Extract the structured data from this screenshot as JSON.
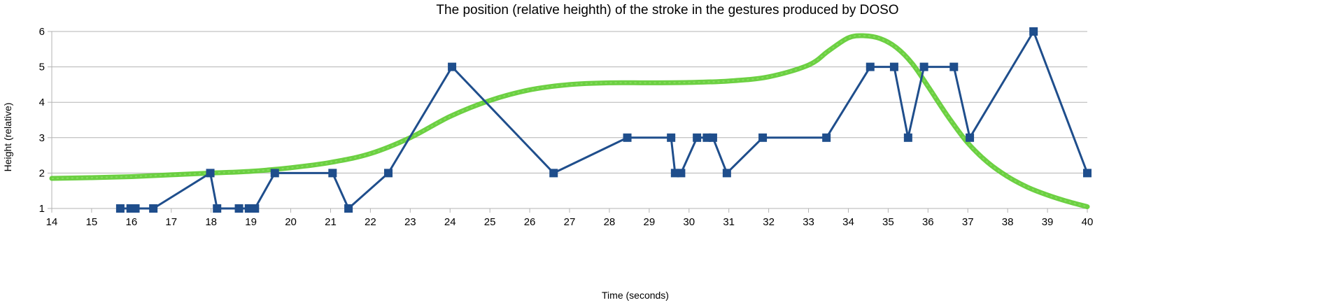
{
  "chart_data": {
    "type": "line",
    "title": "The position (relative heighth) of the stroke in the gestures produced by DOSO",
    "xlabel": "Time (seconds)",
    "ylabel": "Height (relative)",
    "xlim": [
      14,
      40
    ],
    "ylim": [
      1,
      6
    ],
    "x_ticks": [
      "14",
      "15",
      "16",
      "17",
      "18",
      "19",
      "20",
      "21",
      "22",
      "23",
      "24",
      "25",
      "26",
      "27",
      "28",
      "29",
      "30",
      "31",
      "32",
      "33",
      "34",
      "35",
      "36",
      "37",
      "38",
      "39",
      "40"
    ],
    "y_ticks": [
      "1",
      "2",
      "3",
      "4",
      "5",
      "6"
    ],
    "grid": "horizontal",
    "legend": "none",
    "series": [
      {
        "color": "#1F4E8C",
        "marker": "square",
        "points": [
          [
            15.72,
            1
          ],
          [
            15.98,
            1
          ],
          [
            16.1,
            1
          ],
          [
            16.55,
            1
          ],
          [
            17.98,
            2
          ],
          [
            18.15,
            1
          ],
          [
            18.7,
            1
          ],
          [
            18.95,
            1
          ],
          [
            19.1,
            1
          ],
          [
            19.6,
            2
          ],
          [
            21.05,
            2
          ],
          [
            21.45,
            1
          ],
          [
            22.45,
            2
          ],
          [
            24.05,
            5
          ],
          [
            26.6,
            2
          ],
          [
            28.45,
            3
          ],
          [
            29.55,
            3
          ],
          [
            29.65,
            2
          ],
          [
            29.8,
            2
          ],
          [
            30.2,
            3
          ],
          [
            30.45,
            3
          ],
          [
            30.6,
            3
          ],
          [
            30.95,
            2
          ],
          [
            31.85,
            3
          ],
          [
            33.45,
            3
          ],
          [
            34.55,
            5
          ],
          [
            35.15,
            5
          ],
          [
            35.5,
            3
          ],
          [
            35.9,
            5
          ],
          [
            36.65,
            5
          ],
          [
            37.05,
            3
          ],
          [
            38.65,
            6
          ],
          [
            40.0,
            2
          ]
        ]
      },
      {
        "color": "#5CCB2E",
        "marker": "none",
        "style": "smooth-trend",
        "points": [
          [
            14,
            1.85
          ],
          [
            15,
            1.87
          ],
          [
            16,
            1.9
          ],
          [
            17,
            1.95
          ],
          [
            18,
            2.0
          ],
          [
            19,
            2.05
          ],
          [
            20,
            2.15
          ],
          [
            21,
            2.3
          ],
          [
            22,
            2.55
          ],
          [
            23,
            3.0
          ],
          [
            24,
            3.6
          ],
          [
            25,
            4.05
          ],
          [
            26,
            4.35
          ],
          [
            27,
            4.5
          ],
          [
            28,
            4.55
          ],
          [
            29,
            4.55
          ],
          [
            30,
            4.56
          ],
          [
            31,
            4.6
          ],
          [
            32,
            4.72
          ],
          [
            33,
            5.05
          ],
          [
            33.5,
            5.45
          ],
          [
            34,
            5.82
          ],
          [
            34.4,
            5.88
          ],
          [
            34.8,
            5.8
          ],
          [
            35.2,
            5.55
          ],
          [
            35.6,
            5.1
          ],
          [
            36,
            4.45
          ],
          [
            36.5,
            3.6
          ],
          [
            37,
            2.85
          ],
          [
            37.5,
            2.3
          ],
          [
            38,
            1.9
          ],
          [
            38.5,
            1.6
          ],
          [
            39,
            1.38
          ],
          [
            39.5,
            1.2
          ],
          [
            40,
            1.05
          ]
        ]
      }
    ]
  },
  "style": {
    "grid_color": "#b3b3b3",
    "axis_color": "#b3b3b3"
  }
}
